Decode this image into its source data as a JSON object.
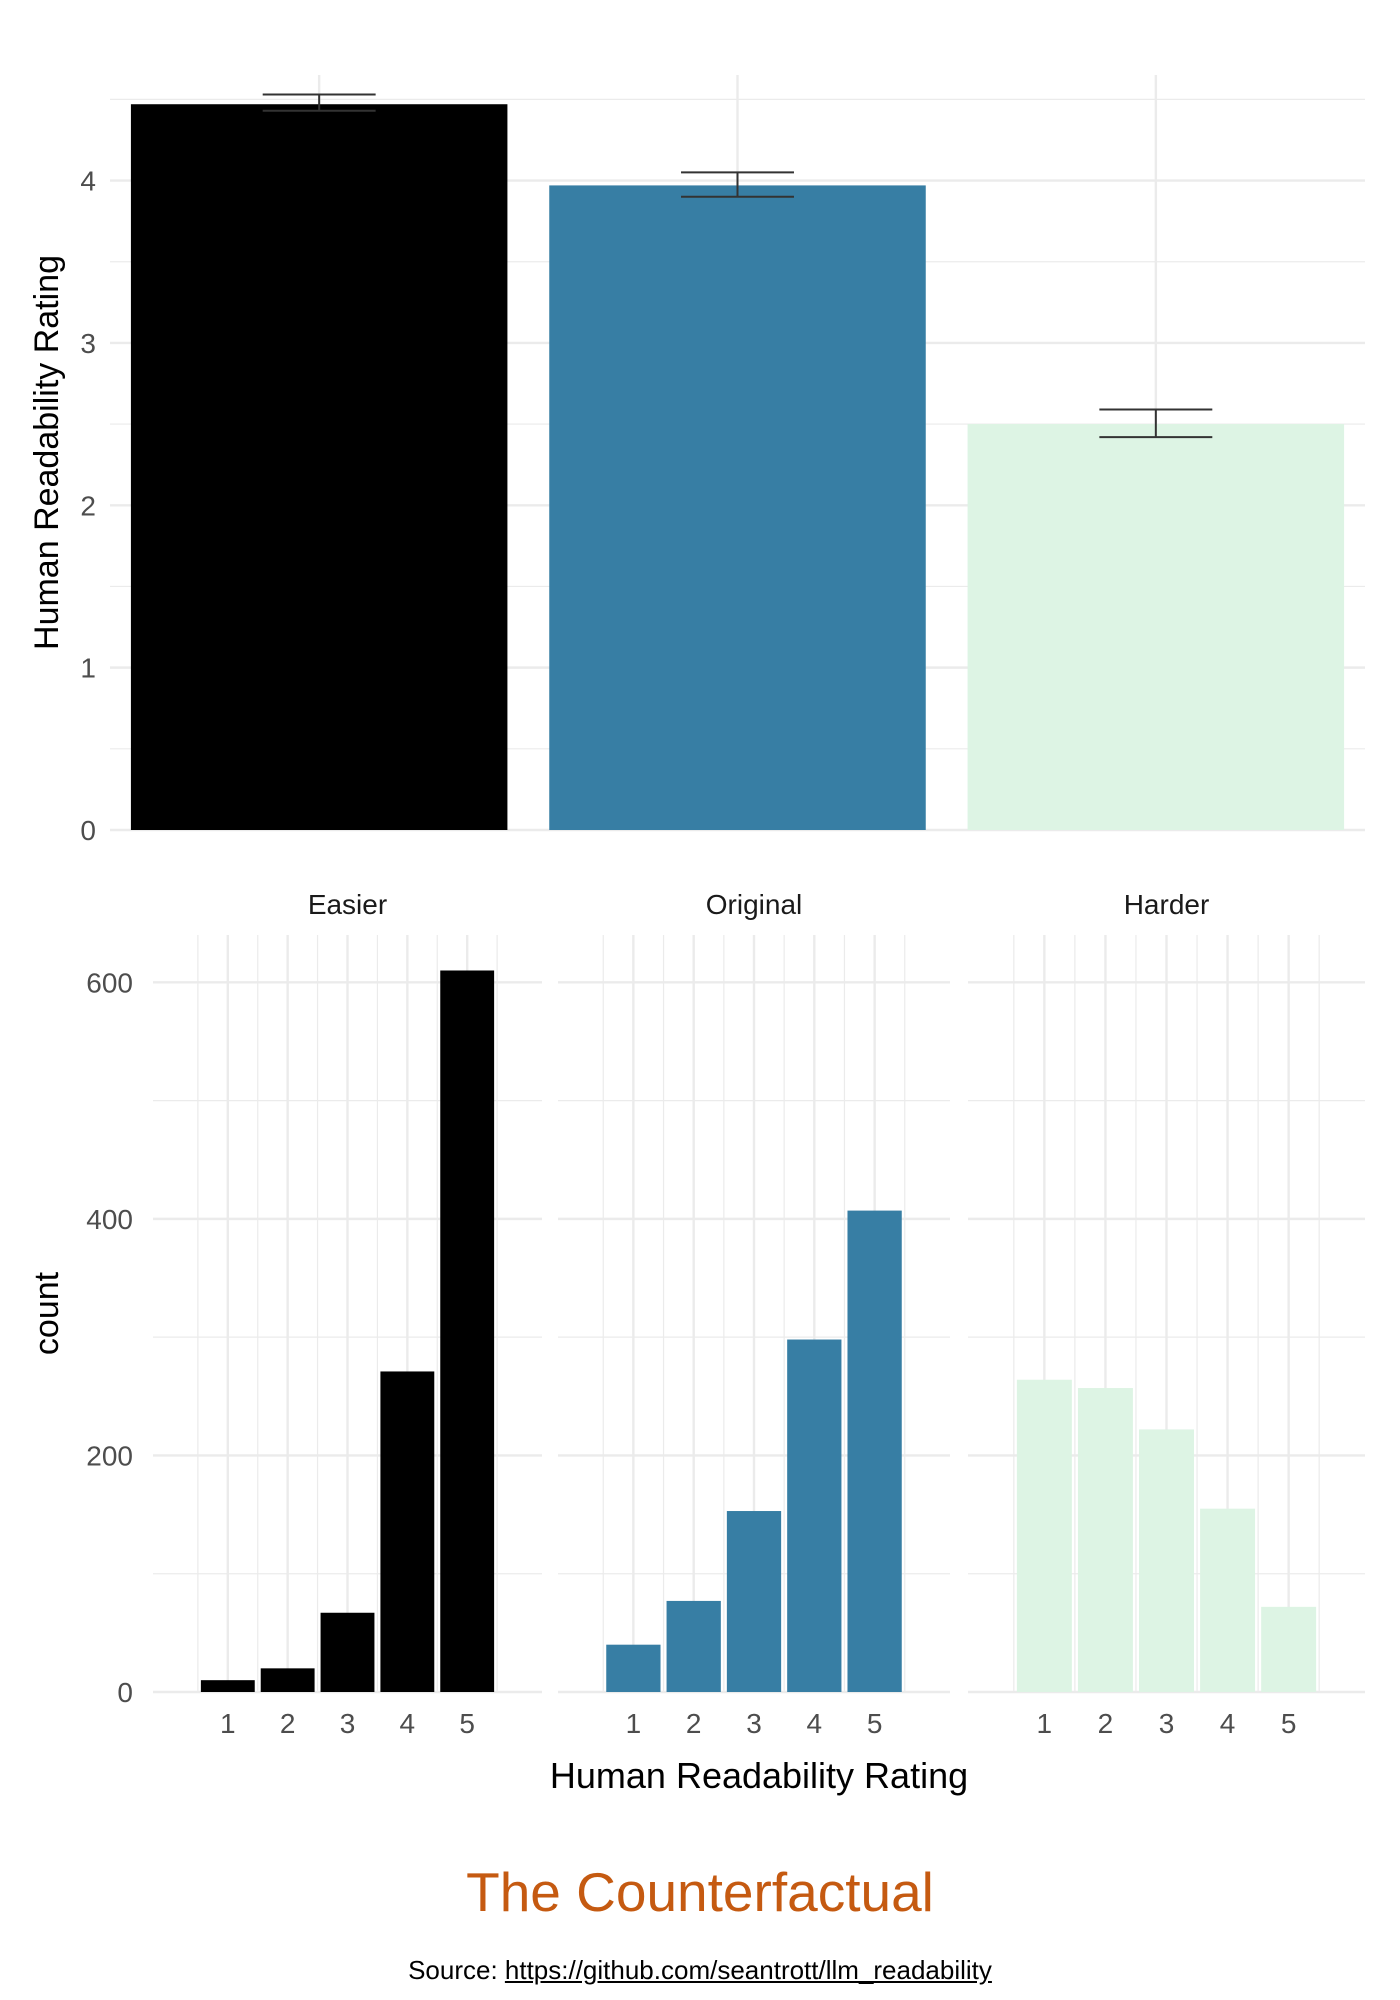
{
  "colors": {
    "easier": "#000000",
    "original": "#377ea4",
    "harder": "#ddf4e4",
    "grid": "#ebebeb",
    "tick_text": "#4d4d4d",
    "error_bar": "#333333",
    "brand": "#c55a11"
  },
  "chart_data": [
    {
      "type": "bar",
      "categories": [
        "Easier",
        "Original",
        "Harder"
      ],
      "values": [
        4.47,
        3.97,
        2.5
      ],
      "error_low": [
        4.43,
        3.9,
        2.42
      ],
      "error_high": [
        4.53,
        4.05,
        2.59
      ],
      "xlabel": "",
      "ylabel": "Human Readability Rating",
      "ylim": [
        0,
        4.65
      ],
      "yticks": [
        "0",
        "1",
        "2",
        "3",
        "4"
      ],
      "grid": true
    },
    {
      "type": "bar",
      "facets": [
        "Easier",
        "Original",
        "Harder"
      ],
      "categories": [
        "1",
        "2",
        "3",
        "4",
        "5"
      ],
      "series": [
        {
          "facet": "Easier",
          "values": [
            10,
            20,
            67,
            271,
            610
          ]
        },
        {
          "facet": "Original",
          "values": [
            40,
            77,
            153,
            298,
            407
          ]
        },
        {
          "facet": "Harder",
          "values": [
            264,
            257,
            222,
            155,
            72
          ]
        }
      ],
      "xlabel": "Human Readability Rating",
      "ylabel": "count",
      "ylim": [
        0,
        640
      ],
      "yticks": [
        "0",
        "200",
        "400",
        "600"
      ],
      "grid": true
    }
  ],
  "footer": {
    "brand": "The Counterfactual",
    "source_prefix": "Source: ",
    "source_url": "https://github.com/seantrott/llm_readability"
  }
}
